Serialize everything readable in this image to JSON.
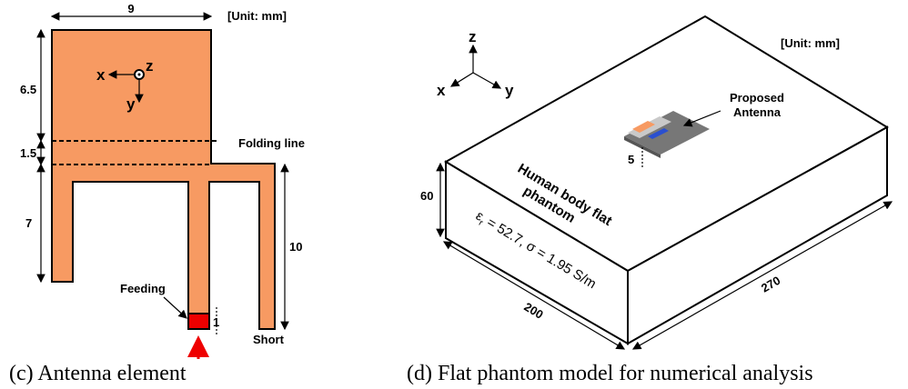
{
  "panels": [
    {
      "caption": "(c) Antenna element",
      "unit": "[Unit: mm]",
      "axes": {
        "x": "x",
        "y": "y",
        "z": "z"
      },
      "dimensions": {
        "width": "9",
        "top": "6.5",
        "fold": "1.5",
        "arm": "7",
        "right": "10",
        "feed": "1"
      },
      "labels": {
        "folding": "Folding line",
        "feeding": "Feeding",
        "short": "Short"
      }
    },
    {
      "caption": "(d) Flat phantom model for numerical analysis",
      "unit": "[Unit: mm]",
      "axes": {
        "x": "x",
        "y": "y",
        "z": "z"
      },
      "antenna_label": [
        "Proposed",
        "Antenna"
      ],
      "phantom_label": [
        "Human body flat",
        "phantom"
      ],
      "material": {
        "epsilon": "ε",
        "sub": "r",
        "rest": " = 52.7, σ = 1.95 S/m"
      },
      "dimensions": {
        "gap": "5",
        "height": "60",
        "depth": "200",
        "length": "270"
      }
    }
  ]
}
